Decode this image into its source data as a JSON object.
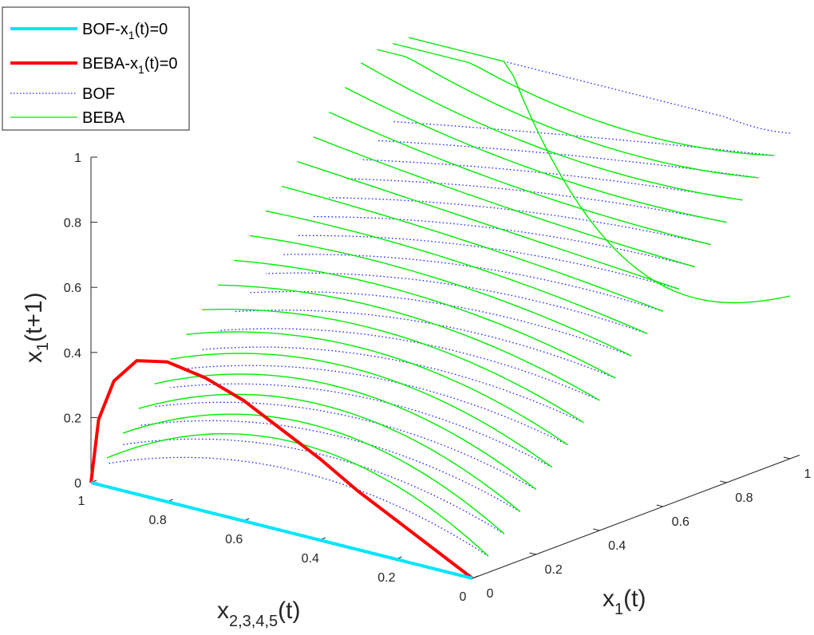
{
  "chart_data": {
    "type": "line",
    "title": "",
    "projection": "3d",
    "axes": {
      "x1": {
        "label_main": "x",
        "label_sub": "1",
        "label_tail": "(t)",
        "ticks": [
          "0",
          "0.2",
          "0.4",
          "0.6",
          "0.8",
          "1"
        ],
        "range": [
          0,
          1
        ]
      },
      "x2345": {
        "label_main": "x",
        "label_sub": "2,3,4,5",
        "label_tail": "(t)",
        "ticks": [
          "0",
          "0.2",
          "0.4",
          "0.6",
          "0.8",
          "1"
        ],
        "range": [
          0,
          1
        ]
      },
      "z": {
        "label_main": "x",
        "label_sub": "1",
        "label_tail": "(t+1)",
        "ticks": [
          "0",
          "0.2",
          "0.4",
          "0.6",
          "0.8",
          "1"
        ],
        "range": [
          0,
          1
        ]
      }
    },
    "grid": false,
    "legend": {
      "position": "top-left",
      "entries": [
        {
          "label_main": "BOF-x",
          "label_sub": "1",
          "label_tail": "(t)=0",
          "color": "#00e5ff",
          "style": "solid-thick"
        },
        {
          "label_main": "BEBA-x",
          "label_sub": "1",
          "label_tail": "(t)=0",
          "color": "#ff0000",
          "style": "solid-thick"
        },
        {
          "label_main": "BOF",
          "label_sub": "",
          "label_tail": "",
          "color": "#1a1aff",
          "style": "dotted"
        },
        {
          "label_main": "BEBA",
          "label_sub": "",
          "label_tail": "",
          "color": "#00ee00",
          "style": "solid"
        }
      ]
    },
    "series": [
      {
        "name": "BOF-x1(t)=0",
        "color": "#00e5ff",
        "x1": 0,
        "x2345": [
          1.0,
          0.8,
          0.6,
          0.4,
          0.2,
          0.0
        ],
        "z": [
          0,
          0,
          0,
          0,
          0,
          0
        ]
      },
      {
        "name": "BEBA-x1(t)=0",
        "color": "#ff0000",
        "x1": 0,
        "x2345": [
          1.0,
          0.98,
          0.94,
          0.88,
          0.8,
          0.7,
          0.6,
          0.5,
          0.4,
          0.3,
          0.2,
          0.1,
          0.0
        ],
        "z": [
          0.0,
          0.2,
          0.33,
          0.41,
          0.43,
          0.41,
          0.37,
          0.31,
          0.25,
          0.18,
          0.12,
          0.06,
          0.0
        ]
      },
      {
        "name": "BOF",
        "color": "#1a1aff",
        "family_x1": "0.05 to 1.00 step 0.05",
        "x2345_span": [
          0,
          1
        ],
        "z_near_x2345_0": "x1",
        "z_at_x2345_1_for_x1_1": 1.0
      },
      {
        "name": "BEBA",
        "color": "#00ee00",
        "family_x1": "0.05 to 1.00 step 0.05",
        "x2345_span": [
          0,
          1
        ],
        "z_at_x1_1_x2345_0": 0.5,
        "z_at_x1_1_x2345_1": 1.0
      }
    ]
  }
}
